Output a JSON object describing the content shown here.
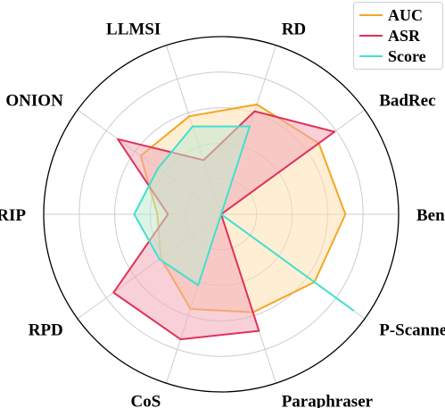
{
  "chart_data": {
    "type": "radar",
    "title": "",
    "axes": [
      "Benign",
      "BadRec",
      "RD",
      "LLMSI",
      "ONION",
      "STRIP",
      "RPD",
      "CoS",
      "Paraphraser",
      "P-Scanner"
    ],
    "rlim": [
      0,
      1
    ],
    "grid": true,
    "legend_position": "top-right",
    "series": [
      {
        "name": "AUC",
        "color": "#f5a623",
        "fill": "#fde0b0",
        "values": [
          0.7,
          0.68,
          0.65,
          0.58,
          0.56,
          0.36,
          0.42,
          0.56,
          0.58,
          0.65
        ]
      },
      {
        "name": "ASR",
        "color": "#e0315a",
        "fill": "#f2a9b6",
        "values": [
          0.0,
          0.79,
          0.61,
          0.32,
          0.72,
          0.3,
          0.75,
          0.74,
          0.69,
          0.0
        ]
      },
      {
        "name": "Score",
        "color": "#40e0d0",
        "fill": "#bfead0",
        "values": [
          0.0,
          0.0,
          0.52,
          0.52,
          0.44,
          0.49,
          0.43,
          0.42,
          0.0,
          0.92
        ]
      }
    ]
  }
}
